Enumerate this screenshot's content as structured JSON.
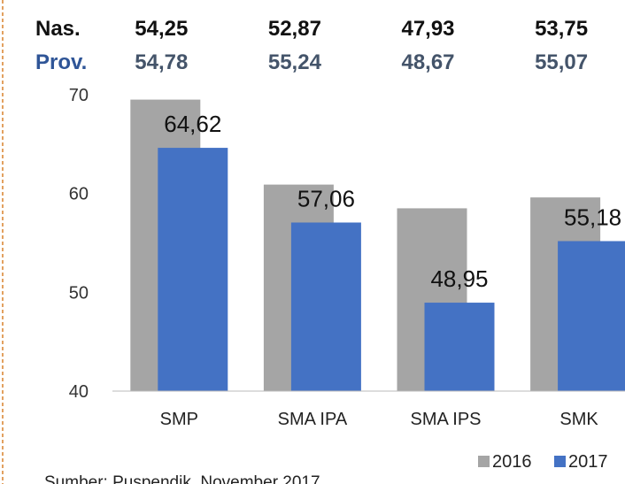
{
  "table": {
    "rows": [
      [
        "Nas.",
        "54,25",
        "52,87",
        "47,93",
        "53,75"
      ],
      [
        "Prov.",
        "54,78",
        "55,24",
        "48,67",
        "55,07"
      ]
    ]
  },
  "chart_data": {
    "type": "bar",
    "categories": [
      "SMP",
      "SMA IPA",
      "SMA IPS",
      "SMK"
    ],
    "series": [
      {
        "name": "2016",
        "color": "#a5a5a5",
        "values": [
          69.5,
          60.9,
          58.5,
          59.6
        ]
      },
      {
        "name": "2017",
        "color": "#4472c4",
        "values": [
          64.62,
          57.06,
          48.95,
          55.18
        ],
        "value_labels": [
          "64,62",
          "57,06",
          "48,95",
          "55,18"
        ]
      }
    ],
    "ylim": [
      40,
      70
    ],
    "yticks": [
      40,
      50,
      60,
      70
    ],
    "grid": false,
    "legend": "bottom-right"
  },
  "source": "Sumber: Puspendik, November 2017"
}
